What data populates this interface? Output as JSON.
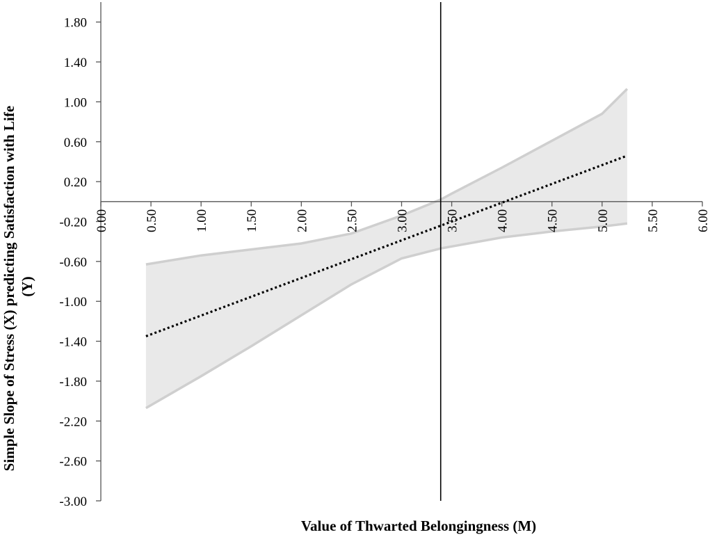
{
  "chart_data": {
    "type": "line",
    "title": "",
    "xlabel": "Value of Thwarted Belongingness (M)",
    "ylabel": "Simple Slope of Stress (X) predicting Satisfaction with Life (Y)",
    "ylabel_lines": [
      "Simple Slope of Stress (X) predicting Satisfaction with Life",
      "(Y)"
    ],
    "xlim": [
      0,
      6
    ],
    "ylim": [
      -3,
      2
    ],
    "x_ticks": [
      "0.00",
      "0.50",
      "1.00",
      "1.50",
      "2.00",
      "2.50",
      "3.00",
      "3.50",
      "4.00",
      "4.50",
      "5.00",
      "5.50",
      "6.00"
    ],
    "y_ticks": [
      "1.80",
      "1.40",
      "1.00",
      "0.60",
      "0.20",
      "-0.20",
      "-0.60",
      "-1.00",
      "-1.40",
      "-1.80",
      "-2.20",
      "-2.60",
      "-3.00"
    ],
    "grid": false,
    "legend": "none",
    "reference_line_x": 3.39,
    "series": [
      {
        "role": "simple-slope",
        "style": "dotted",
        "color": "#000000",
        "x": [
          0.45,
          5.25
        ],
        "y": [
          -1.35,
          0.46
        ]
      }
    ],
    "confidence_band": {
      "color": "#e9e9e9",
      "edge_color": "#cfcfcf",
      "x": [
        0.45,
        1.0,
        1.5,
        2.0,
        2.5,
        3.0,
        3.39,
        3.5,
        4.0,
        4.5,
        5.0,
        5.25
      ],
      "upper": [
        -0.63,
        -0.54,
        -0.48,
        -0.42,
        -0.32,
        -0.14,
        0.02,
        0.08,
        0.34,
        0.61,
        0.88,
        1.13
      ],
      "lower": [
        -2.07,
        -1.75,
        -1.45,
        -1.14,
        -0.83,
        -0.57,
        -0.47,
        -0.45,
        -0.36,
        -0.3,
        -0.25,
        -0.22
      ]
    }
  }
}
